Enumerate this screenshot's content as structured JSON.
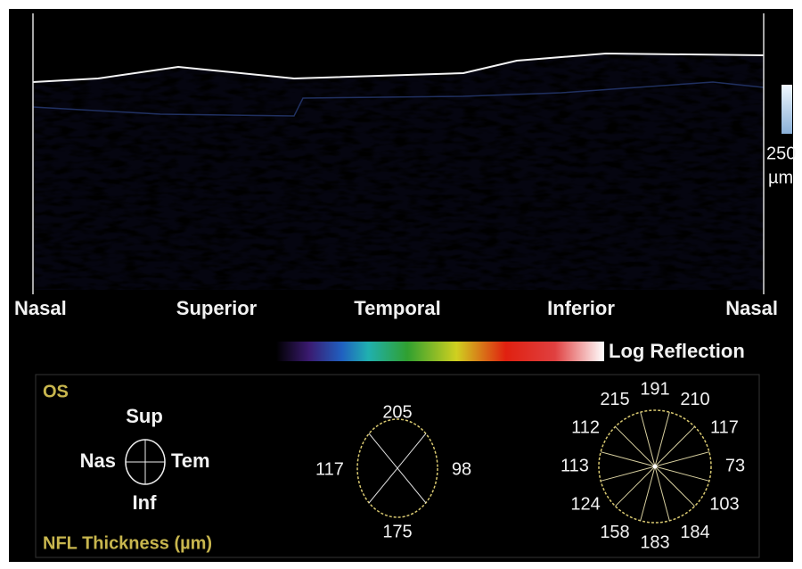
{
  "scan": {
    "position_labels": [
      "Nasal",
      "Superior",
      "Temporal",
      "Inferior",
      "Nasal"
    ],
    "scale_bar": [
      "250",
      "µm"
    ]
  },
  "color_bar": {
    "label": "Log Reflection"
  },
  "legend": {
    "eye": "OS",
    "orientation": {
      "top": "Sup",
      "left": "Nas",
      "right": "Tem",
      "bottom": "Inf"
    },
    "title": "NFL Thickness (µm)"
  },
  "quadrants": {
    "top": "205",
    "left": "117",
    "right": "98",
    "bottom": "175"
  },
  "clock_hours": [
    "191",
    "210",
    "117",
    "73",
    "103",
    "184",
    "183",
    "158",
    "124",
    "113",
    "112",
    "215"
  ]
}
